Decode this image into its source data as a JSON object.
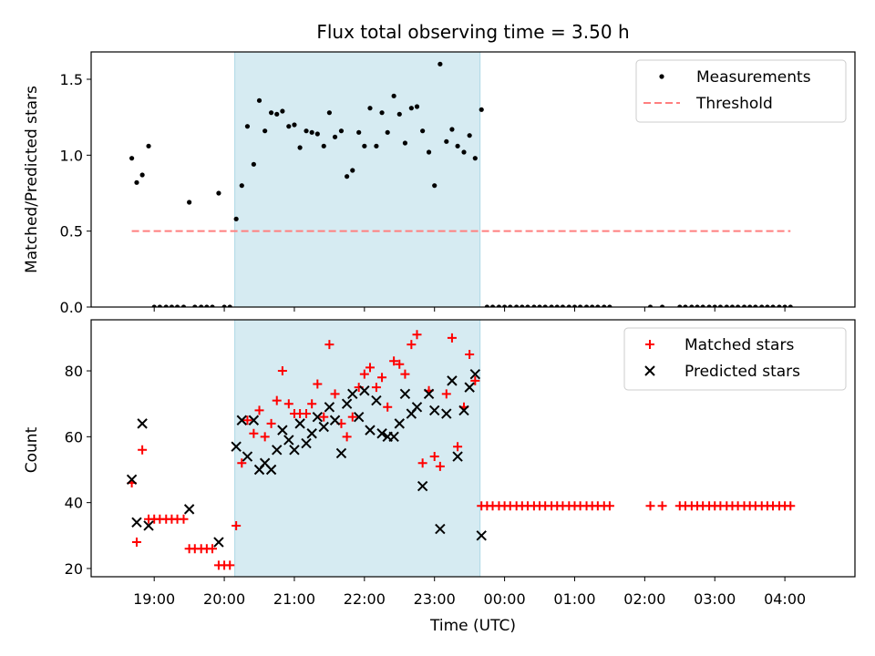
{
  "figure": {
    "title": "Flux total observing time = 3.50 h",
    "xlabel": "Time (UTC)",
    "x_tick_labels": [
      "19:00",
      "20:00",
      "21:00",
      "22:00",
      "23:00",
      "00:00",
      "01:00",
      "02:00",
      "03:00",
      "04:00"
    ],
    "x_ticks_hours": [
      19,
      20,
      21,
      22,
      23,
      24,
      25,
      26,
      27,
      28
    ],
    "xlim_hours": [
      18.1,
      29.0
    ],
    "shaded_interval_hours": [
      20.15,
      23.65
    ],
    "shade_color": "#add8e6"
  },
  "chart_data": [
    {
      "type": "scatter",
      "ylabel": "Matched/Predicted stars",
      "ylim": [
        0,
        1.68
      ],
      "y_ticks": [
        0.0,
        0.5,
        1.0,
        1.5
      ],
      "y_tick_labels": [
        "0.0",
        "0.5",
        "1.0",
        "1.5"
      ],
      "legend_position": "top-right",
      "series": [
        {
          "name": "Measurements",
          "marker": "dot",
          "color": "#000000",
          "x": [
            18.68,
            18.75,
            18.83,
            18.92,
            19.0,
            19.08,
            19.17,
            19.25,
            19.33,
            19.42,
            19.5,
            19.58,
            19.67,
            19.75,
            19.83,
            19.92,
            20.0,
            20.08,
            20.17,
            20.25,
            20.33,
            20.42,
            20.5,
            20.58,
            20.67,
            20.75,
            20.83,
            20.92,
            21.0,
            21.08,
            21.17,
            21.25,
            21.33,
            21.42,
            21.5,
            21.58,
            21.67,
            21.75,
            21.83,
            21.92,
            22.0,
            22.08,
            22.17,
            22.25,
            22.33,
            22.42,
            22.5,
            22.58,
            22.67,
            22.75,
            22.83,
            22.92,
            23.0,
            23.08,
            23.17,
            23.25,
            23.33,
            23.42,
            23.5,
            23.58,
            23.67,
            23.75,
            23.83,
            23.92,
            24.0,
            24.08,
            24.17,
            24.25,
            24.33,
            24.42,
            24.5,
            24.58,
            24.67,
            24.75,
            24.83,
            24.92,
            25.0,
            25.08,
            25.17,
            25.25,
            25.33,
            25.42,
            25.5,
            26.08,
            26.25,
            26.5,
            26.58,
            26.67,
            26.75,
            26.83,
            26.92,
            27.0,
            27.08,
            27.17,
            27.25,
            27.33,
            27.42,
            27.5,
            27.58,
            27.67,
            27.75,
            27.83,
            27.92,
            28.0,
            28.08
          ],
          "y": [
            0.98,
            0.82,
            0.87,
            1.06,
            0,
            0,
            0,
            0,
            0,
            0,
            0.69,
            0,
            0,
            0,
            0,
            0.75,
            0,
            0,
            0.58,
            0.8,
            1.19,
            0.94,
            1.36,
            1.16,
            1.28,
            1.27,
            1.29,
            1.19,
            1.2,
            1.05,
            1.16,
            1.15,
            1.14,
            1.06,
            1.28,
            1.12,
            1.16,
            0.86,
            0.9,
            1.15,
            1.06,
            1.31,
            1.06,
            1.28,
            1.15,
            1.39,
            1.27,
            1.08,
            1.31,
            1.32,
            1.16,
            1.02,
            0.8,
            1.6,
            1.09,
            1.17,
            1.06,
            1.02,
            1.13,
            0.98,
            1.3,
            0,
            0,
            0,
            0,
            0,
            0,
            0,
            0,
            0,
            0,
            0,
            0,
            0,
            0,
            0,
            0,
            0,
            0,
            0,
            0,
            0,
            0,
            0,
            0,
            0,
            0,
            0,
            0,
            0,
            0,
            0,
            0,
            0,
            0,
            0,
            0,
            0,
            0,
            0,
            0,
            0,
            0,
            0,
            0
          ]
        },
        {
          "name": "Threshold",
          "marker": "dashed-line",
          "color": "#ff7f7f",
          "x": [
            18.68,
            28.08
          ],
          "y": [
            0.5,
            0.5
          ]
        }
      ]
    },
    {
      "type": "scatter",
      "ylabel": "Count",
      "ylim": [
        17.5,
        95.5
      ],
      "y_ticks": [
        20,
        40,
        60,
        80
      ],
      "y_tick_labels": [
        "20",
        "40",
        "60",
        "80"
      ],
      "legend_position": "top-right",
      "series": [
        {
          "name": "Matched stars",
          "marker": "plus",
          "color": "#ff0000",
          "x": [
            18.68,
            18.75,
            18.83,
            18.92,
            19.0,
            19.08,
            19.17,
            19.25,
            19.33,
            19.42,
            19.5,
            19.58,
            19.67,
            19.75,
            19.83,
            19.92,
            20.0,
            20.08,
            20.17,
            20.25,
            20.33,
            20.42,
            20.5,
            20.58,
            20.67,
            20.75,
            20.83,
            20.92,
            21.0,
            21.08,
            21.17,
            21.25,
            21.33,
            21.42,
            21.5,
            21.58,
            21.67,
            21.75,
            21.83,
            21.92,
            22.0,
            22.08,
            22.17,
            22.25,
            22.33,
            22.42,
            22.5,
            22.58,
            22.67,
            22.75,
            22.83,
            22.92,
            23.0,
            23.08,
            23.17,
            23.25,
            23.33,
            23.42,
            23.5,
            23.58,
            23.67,
            23.75,
            23.83,
            23.92,
            24.0,
            24.08,
            24.17,
            24.25,
            24.33,
            24.42,
            24.5,
            24.58,
            24.67,
            24.75,
            24.83,
            24.92,
            25.0,
            25.08,
            25.17,
            25.25,
            25.33,
            25.42,
            25.5,
            26.08,
            26.25,
            26.5,
            26.58,
            26.67,
            26.75,
            26.83,
            26.92,
            27.0,
            27.08,
            27.17,
            27.25,
            27.33,
            27.42,
            27.5,
            27.58,
            27.67,
            27.75,
            27.83,
            27.92,
            28.0,
            28.08
          ],
          "y": [
            46,
            28,
            56,
            35,
            35,
            35,
            35,
            35,
            35,
            35,
            26,
            26,
            26,
            26,
            26,
            21,
            21,
            21,
            33,
            52,
            65,
            61,
            68,
            60,
            64,
            71,
            80,
            70,
            67,
            67,
            67,
            70,
            76,
            66,
            88,
            73,
            64,
            60,
            66,
            75,
            79,
            81,
            75,
            78,
            69,
            83,
            82,
            79,
            88,
            91,
            52,
            74,
            54,
            51,
            73,
            90,
            57,
            69,
            85,
            77,
            39,
            39,
            39,
            39,
            39,
            39,
            39,
            39,
            39,
            39,
            39,
            39,
            39,
            39,
            39,
            39,
            39,
            39,
            39,
            39,
            39,
            39,
            39,
            39,
            39,
            39,
            39,
            39,
            39,
            39,
            39,
            39,
            39,
            39,
            39,
            39,
            39,
            39,
            39,
            39,
            39,
            39,
            39,
            39,
            39
          ]
        },
        {
          "name": "Predicted stars",
          "marker": "x",
          "color": "#000000",
          "x": [
            18.68,
            18.75,
            18.83,
            18.92,
            19.5,
            19.92,
            20.17,
            20.25,
            20.33,
            20.42,
            20.5,
            20.58,
            20.67,
            20.75,
            20.83,
            20.92,
            21.0,
            21.08,
            21.17,
            21.25,
            21.33,
            21.42,
            21.5,
            21.58,
            21.67,
            21.75,
            21.83,
            21.92,
            22.0,
            22.08,
            22.17,
            22.25,
            22.33,
            22.42,
            22.5,
            22.58,
            22.67,
            22.75,
            22.83,
            22.92,
            23.0,
            23.08,
            23.17,
            23.25,
            23.33,
            23.42,
            23.5,
            23.58,
            23.67
          ],
          "y": [
            47,
            34,
            64,
            33,
            38,
            28,
            57,
            65,
            54,
            65,
            50,
            52,
            50,
            56,
            62,
            59,
            56,
            64,
            58,
            61,
            66,
            63,
            69,
            65,
            55,
            70,
            73,
            66,
            74,
            62,
            71,
            61,
            60,
            60,
            64,
            73,
            67,
            69,
            45,
            73,
            68,
            32,
            67,
            77,
            54,
            68,
            75,
            79,
            30
          ]
        }
      ]
    }
  ]
}
